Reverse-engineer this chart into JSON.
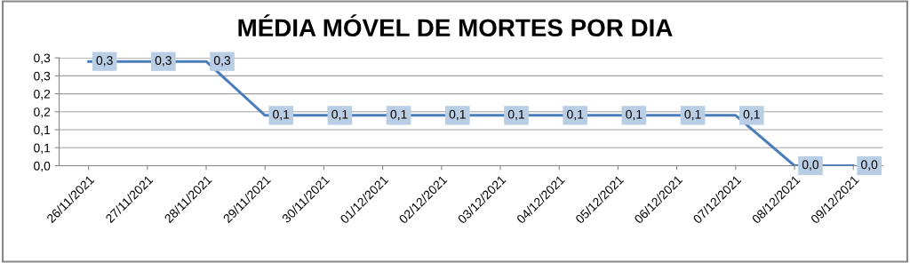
{
  "chart_data": {
    "type": "line",
    "title": "MÉDIA MÓVEL DE MORTES POR DIA",
    "categories": [
      "26/11/2021",
      "27/11/2021",
      "28/11/2021",
      "29/11/2021",
      "30/11/2021",
      "01/12/2021",
      "02/12/2021",
      "03/12/2021",
      "04/12/2021",
      "05/12/2021",
      "06/12/2021",
      "07/12/2021",
      "08/12/2021",
      "09/12/2021"
    ],
    "series": [
      {
        "color": "#4a7ebb",
        "values": [
          0.29,
          0.29,
          0.29,
          0.14,
          0.14,
          0.14,
          0.14,
          0.14,
          0.14,
          0.14,
          0.14,
          0.14,
          0,
          0
        ],
        "value_labels": [
          "0,3",
          "0,3",
          "0,3",
          "0,1",
          "0,1",
          "0,1",
          "0,1",
          "0,1",
          "0,1",
          "0,1",
          "0,1",
          "0,1",
          "0,0",
          "0,0"
        ]
      }
    ],
    "ylim": [
      0,
      0.3
    ],
    "yticks": [
      {
        "value": 0,
        "label": "0,0"
      },
      {
        "value": 0.05,
        "label": "0,1"
      },
      {
        "value": 0.1,
        "label": "0,1"
      },
      {
        "value": 0.15,
        "label": "0,2"
      },
      {
        "value": 0.2,
        "label": "0,2"
      },
      {
        "value": 0.25,
        "label": "0,3"
      },
      {
        "value": 0.3,
        "label": "0,3"
      }
    ],
    "grid": "y",
    "marker": "none",
    "line_style": "solid"
  }
}
